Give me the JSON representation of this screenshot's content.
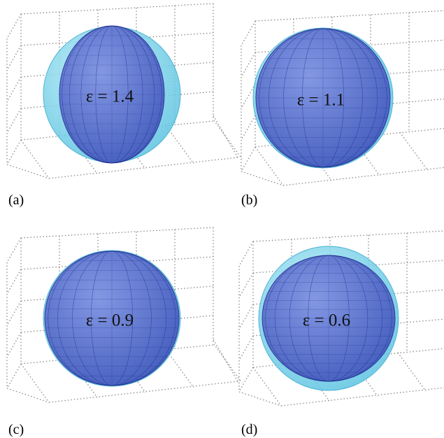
{
  "panels": [
    {
      "label": "(a)",
      "annotation": "ε = 1.4"
    },
    {
      "label": "(b)",
      "annotation": "ε = 1.1"
    },
    {
      "label": "(c)",
      "annotation": "ε = 0.9"
    },
    {
      "label": "(d)",
      "annotation": "ε = 0.6"
    }
  ]
}
